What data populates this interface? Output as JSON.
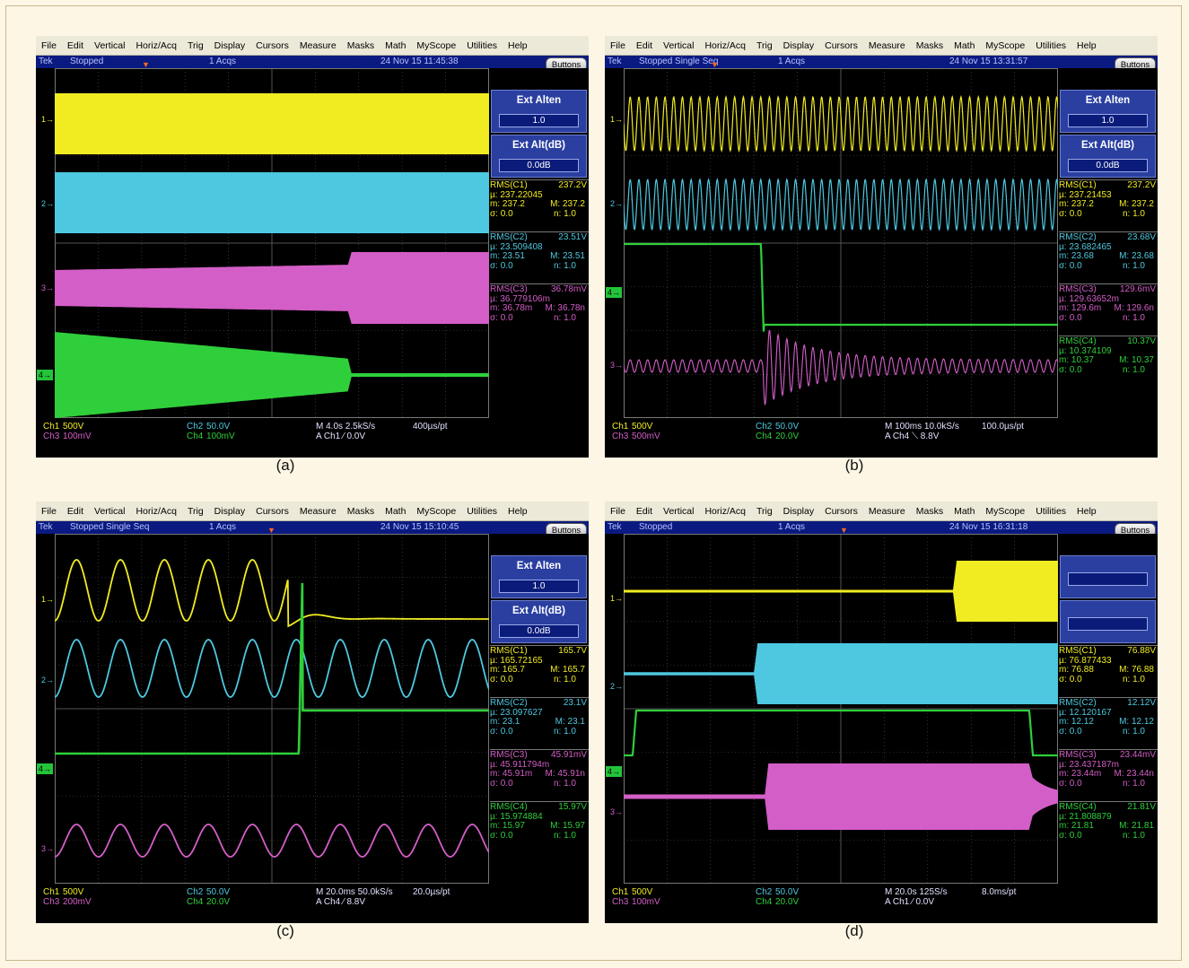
{
  "colors": {
    "ch1": "#f1ec22",
    "ch2": "#4ec8e0",
    "ch3": "#d45ec8",
    "ch4": "#2fcf3b"
  },
  "menu": [
    "File",
    "Edit",
    "Vertical",
    "Horiz/Acq",
    "Trig",
    "Display",
    "Cursors",
    "Measure",
    "Masks",
    "Math",
    "MyScope",
    "Utilities",
    "Help"
  ],
  "buttons_label": "Buttons",
  "ext_alten_label": "Ext Alten",
  "ext_altdb_label": "Ext Alt(dB)",
  "panels": [
    {
      "caption": "(a)",
      "status": {
        "brand": "Tek",
        "state": "Stopped",
        "acqs": "1 Acqs",
        "timestamp": "24 Nov 15 11:45:38"
      },
      "ext_alten": "1.0",
      "ext_altdb": "0.0dB",
      "meas": [
        {
          "ch": "ch1",
          "title": "RMS(C1)",
          "value": "237.2V",
          "mu": "µ: 237.22045",
          "m": "m: 237.2",
          "M": "M: 237.2",
          "s": "σ: 0.0",
          "n": "n: 1.0"
        },
        {
          "ch": "ch2",
          "title": "RMS(C2)",
          "value": "23.51V",
          "mu": "µ: 23.509408",
          "m": "m: 23.51",
          "M": "M: 23.51",
          "s": "σ: 0.0",
          "n": "n: 1.0"
        },
        {
          "ch": "ch3",
          "title": "RMS(C3)",
          "value": "36.78mV",
          "mu": "µ: 36.779106m",
          "m": "m: 36.78m",
          "M": "M: 36.78n",
          "s": "σ: 0.0",
          "n": "n: 1.0"
        }
      ],
      "bottom": {
        "ch1": "Ch1",
        "ch1s": "500V",
        "ch3": "Ch3",
        "ch3s": "100mV",
        "ch2": "Ch2",
        "ch2s": "50.0V",
        "ch4": "Ch4",
        "ch4s": "100mV",
        "timebase": "M 4.0s 2.5kS/s",
        "ptdiv": "400µs/pt",
        "trigger": "A Ch1 ⁄ 0.0V"
      }
    },
    {
      "caption": "(b)",
      "status": {
        "brand": "Tek",
        "state": "Stopped Single Seq",
        "acqs": "1 Acqs",
        "timestamp": "24 Nov 15 13:31:57"
      },
      "ext_alten": "1.0",
      "ext_altdb": "0.0dB",
      "meas": [
        {
          "ch": "ch1",
          "title": "RMS(C1)",
          "value": "237.2V",
          "mu": "µ: 237.21453",
          "m": "m: 237.2",
          "M": "M: 237.2",
          "s": "σ: 0.0",
          "n": "n: 1.0"
        },
        {
          "ch": "ch2",
          "title": "RMS(C2)",
          "value": "23.68V",
          "mu": "µ: 23.682465",
          "m": "m: 23.68",
          "M": "M: 23.68",
          "s": "σ: 0.0",
          "n": "n: 1.0"
        },
        {
          "ch": "ch3",
          "title": "RMS(C3)",
          "value": "129.6mV",
          "mu": "µ: 129.63652m",
          "m": "m: 129.6m",
          "M": "M: 129.6n",
          "s": "σ: 0.0",
          "n": "n: 1.0"
        },
        {
          "ch": "ch4",
          "title": "RMS(C4)",
          "value": "10.37V",
          "mu": "µ: 10.374109",
          "m": "m: 10.37",
          "M": "M: 10.37",
          "s": "σ: 0.0",
          "n": "n: 1.0"
        }
      ],
      "bottom": {
        "ch1": "Ch1",
        "ch1s": "500V",
        "ch3": "Ch3",
        "ch3s": "500mV",
        "ch2": "Ch2",
        "ch2s": "50.0V",
        "ch4": "Ch4",
        "ch4s": "20.0V",
        "timebase": "M 100ms 10.0kS/s",
        "ptdiv": "100.0µs/pt",
        "trigger": "A Ch4 ⟍ 8.8V"
      }
    },
    {
      "caption": "(c)",
      "status": {
        "brand": "Tek",
        "state": "Stopped Single Seq",
        "acqs": "1 Acqs",
        "timestamp": "24 Nov 15 15:10:45"
      },
      "ext_alten": "1.0",
      "ext_altdb": "0.0dB",
      "meas": [
        {
          "ch": "ch1",
          "title": "RMS(C1)",
          "value": "165.7V",
          "mu": "µ: 165.72165",
          "m": "m: 165.7",
          "M": "M: 165.7",
          "s": "σ: 0.0",
          "n": "n: 1.0"
        },
        {
          "ch": "ch2",
          "title": "RMS(C2)",
          "value": "23.1V",
          "mu": "µ: 23.097627",
          "m": "m: 23.1",
          "M": "M: 23.1",
          "s": "σ: 0.0",
          "n": "n: 1.0"
        },
        {
          "ch": "ch3",
          "title": "RMS(C3)",
          "value": "45.91mV",
          "mu": "µ: 45.911794m",
          "m": "m: 45.91m",
          "M": "M: 45.91n",
          "s": "σ: 0.0",
          "n": "n: 1.0"
        },
        {
          "ch": "ch4",
          "title": "RMS(C4)",
          "value": "15.97V",
          "mu": "µ: 15.974884",
          "m": "m: 15.97",
          "M": "M: 15.97",
          "s": "σ: 0.0",
          "n": "n: 1.0"
        }
      ],
      "bottom": {
        "ch1": "Ch1",
        "ch1s": "500V",
        "ch3": "Ch3",
        "ch3s": "200mV",
        "ch2": "Ch2",
        "ch2s": "50.0V",
        "ch4": "Ch4",
        "ch4s": "20.0V",
        "timebase": "M 20.0ms 50.0kS/s",
        "ptdiv": "20.0µs/pt",
        "trigger": "A Ch4 ⁄ 8.8V"
      }
    },
    {
      "caption": "(d)",
      "status": {
        "brand": "Tek",
        "state": "Stopped",
        "acqs": "1 Acqs",
        "timestamp": "24 Nov 15 16:31:18"
      },
      "ext_alten": "",
      "ext_altdb": "",
      "meas": [
        {
          "ch": "ch1",
          "title": "RMS(C1)",
          "value": "76.88V",
          "mu": "µ: 76.877433",
          "m": "m: 76.88",
          "M": "M: 76.88",
          "s": "σ: 0.0",
          "n": "n: 1.0"
        },
        {
          "ch": "ch2",
          "title": "RMS(C2)",
          "value": "12.12V",
          "mu": "µ: 12.120167",
          "m": "m: 12.12",
          "M": "M: 12.12",
          "s": "σ: 0.0",
          "n": "n: 1.0"
        },
        {
          "ch": "ch3",
          "title": "RMS(C3)",
          "value": "23.44mV",
          "mu": "µ: 23.437187m",
          "m": "m: 23.44m",
          "M": "M: 23.44n",
          "s": "σ: 0.0",
          "n": "n: 1.0"
        },
        {
          "ch": "ch4",
          "title": "RMS(C4)",
          "value": "21.81V",
          "mu": "µ: 21.808879",
          "m": "m: 21.81",
          "M": "M: 21.81",
          "s": "σ: 0.0",
          "n": "n: 1.0"
        }
      ],
      "bottom": {
        "ch1": "Ch1",
        "ch1s": "500V",
        "ch3": "Ch3",
        "ch3s": "100mV",
        "ch2": "Ch2",
        "ch2s": "50.0V",
        "ch4": "Ch4",
        "ch4s": "20.0V",
        "timebase": "M 20.0s 125S/s",
        "ptdiv": "8.0ms/pt",
        "trigger": "A Ch1 ⁄ 0.0V"
      }
    }
  ]
}
